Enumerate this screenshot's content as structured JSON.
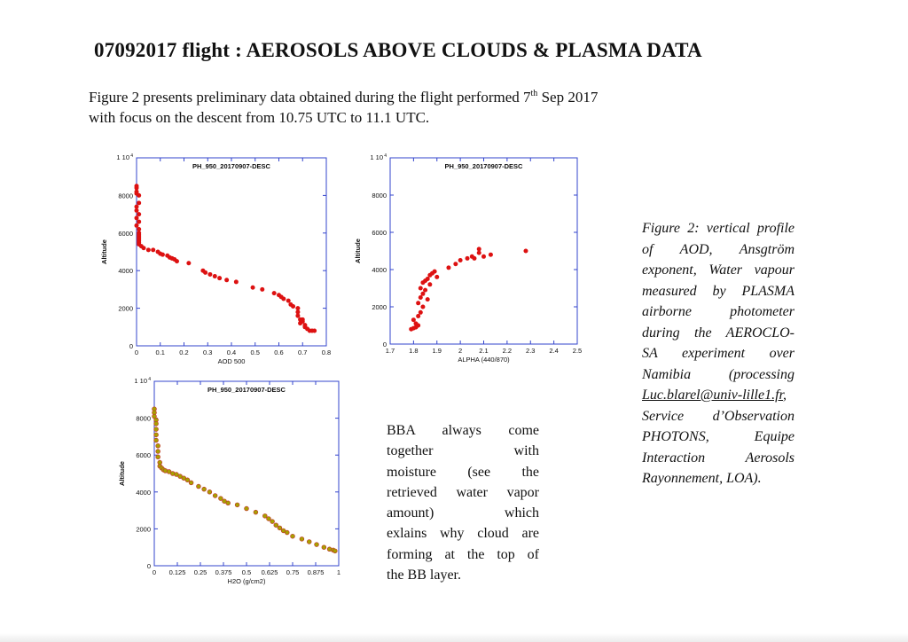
{
  "page": {
    "title": "07092017 flight : AEROSOLS ABOVE CLOUDS & PLASMA DATA",
    "intro_part1": "Figure 2 presents preliminary data obtained during the flight performed 7",
    "intro_sup": "th",
    "intro_part2": " Sep 2017",
    "intro_line2": "with focus on the descent from 10.75 UTC to 11.1 UTC."
  },
  "note": {
    "lines": [
      "BBA always come",
      "together with",
      "moisture (see the",
      "retrieved water vapor",
      "amount) which",
      "exlains why cloud are",
      "forming at the top of",
      "the BB layer."
    ]
  },
  "caption": {
    "lines_before": [
      "Figure 2: vertical profile",
      "of AOD, Ansgtröm",
      "exponent, Water vapour",
      "measured by PLASMA",
      "airborne photometer",
      "during the AEROCLO-",
      "SA experiment over",
      "Namibia (processing"
    ],
    "link": "Luc.blarel@univ-lille1.fr",
    "link_suffix": ",",
    "lines_after": [
      "Service d’Observation",
      "PHOTONS, Equipe",
      "Interaction Aerosols",
      "Rayonnement, LOA)."
    ]
  },
  "chart_data": [
    {
      "type": "scatter",
      "title": "PH_950_20170907-DESC",
      "xlabel": "AOD 500",
      "ylabel": "Altitude",
      "xlim": [
        0,
        0.8
      ],
      "ylim": [
        0,
        10000
      ],
      "xticks": [
        "0",
        "0.1",
        "0.2",
        "0.3",
        "0.4",
        "0.5",
        "0.6",
        "0.7",
        "0.8"
      ],
      "yticks": [
        "0",
        "2000",
        "4000",
        "6000",
        "8000"
      ],
      "ytop_label": "1 10",
      "ytop_exp": "4",
      "marker_color": "#dd1111",
      "x": [
        0.0,
        0.0,
        0.0,
        0.0,
        0.01,
        0.01,
        0.0,
        0.0,
        0.01,
        0.0,
        0.01,
        0.0,
        0.01,
        0.01,
        0.01,
        0.01,
        0.01,
        0.01,
        0.01,
        0.01,
        0.02,
        0.03,
        0.05,
        0.07,
        0.09,
        0.1,
        0.11,
        0.13,
        0.14,
        0.15,
        0.16,
        0.17,
        0.22,
        0.28,
        0.29,
        0.31,
        0.33,
        0.35,
        0.38,
        0.42,
        0.49,
        0.53,
        0.58,
        0.6,
        0.61,
        0.62,
        0.64,
        0.65,
        0.66,
        0.68,
        0.68,
        0.68,
        0.69,
        0.69,
        0.7,
        0.7,
        0.71,
        0.71,
        0.72,
        0.73,
        0.74,
        0.75
      ],
      "y": [
        8500,
        8400,
        8200,
        8100,
        8000,
        7600,
        7400,
        7200,
        7000,
        6800,
        6600,
        6400,
        6200,
        6000,
        5900,
        5800,
        5700,
        5600,
        5500,
        5400,
        5300,
        5200,
        5100,
        5100,
        5000,
        4900,
        4850,
        4800,
        4700,
        4650,
        4600,
        4500,
        4400,
        4000,
        3900,
        3800,
        3700,
        3600,
        3500,
        3400,
        3100,
        3000,
        2800,
        2700,
        2600,
        2500,
        2400,
        2200,
        2100,
        2000,
        1800,
        1600,
        1400,
        1200,
        1400,
        1300,
        1100,
        1000,
        900,
        800,
        800,
        800
      ]
    },
    {
      "type": "scatter",
      "title": "PH_950_20170907-DESC",
      "xlabel": "ALPHA (440/870)",
      "ylabel": "Altitude",
      "xlim": [
        1.7,
        2.5
      ],
      "ylim": [
        0,
        10000
      ],
      "xticks": [
        "1.7",
        "1.8",
        "1.9",
        "2",
        "2.1",
        "2.2",
        "2.3",
        "2.4",
        "2.5"
      ],
      "yticks": [
        "0",
        "2000",
        "4000",
        "6000",
        "8000"
      ],
      "ytop_label": "1 10",
      "ytop_exp": "4",
      "marker_color": "#dd1111",
      "x": [
        1.79,
        1.8,
        1.81,
        1.82,
        1.81,
        1.8,
        1.82,
        1.83,
        1.84,
        1.82,
        1.83,
        1.84,
        1.85,
        1.83,
        1.84,
        1.85,
        1.86,
        1.87,
        1.88,
        1.89,
        1.9,
        1.87,
        1.86,
        1.95,
        1.98,
        2.0,
        2.03,
        2.06,
        2.05,
        2.08,
        2.1,
        2.08,
        2.13,
        2.28
      ],
      "y": [
        800,
        850,
        900,
        1000,
        1100,
        1300,
        1500,
        1700,
        2000,
        2200,
        2500,
        2700,
        2900,
        3000,
        3300,
        3400,
        3500,
        3700,
        3800,
        3900,
        3600,
        3200,
        2400,
        4100,
        4300,
        4500,
        4600,
        4600,
        4700,
        4900,
        4700,
        5100,
        4800,
        5000
      ]
    },
    {
      "type": "scatter",
      "title": "PH_950_20170907-DESC",
      "xlabel": "H2O (g/cm2)",
      "ylabel": "Altitude",
      "xlim": [
        0,
        1
      ],
      "ylim": [
        0,
        10000
      ],
      "xticks": [
        "0",
        "0.125",
        "0.25",
        "0.375",
        "0.5",
        "0.625",
        "0.75",
        "0.875",
        "1"
      ],
      "yticks": [
        "0",
        "2000",
        "4000",
        "6000",
        "8000"
      ],
      "ytop_label": "1 10",
      "ytop_exp": "4",
      "marker_color": "#a8a000",
      "marker_edge": "#c0392b",
      "x": [
        0.0,
        0.0,
        0.0,
        0.01,
        0.01,
        0.01,
        0.01,
        0.01,
        0.02,
        0.02,
        0.02,
        0.03,
        0.03,
        0.04,
        0.05,
        0.06,
        0.08,
        0.1,
        0.12,
        0.14,
        0.16,
        0.18,
        0.2,
        0.24,
        0.27,
        0.3,
        0.33,
        0.36,
        0.38,
        0.4,
        0.45,
        0.5,
        0.55,
        0.6,
        0.62,
        0.64,
        0.66,
        0.68,
        0.7,
        0.72,
        0.75,
        0.8,
        0.84,
        0.88,
        0.92,
        0.95,
        0.97,
        0.98
      ],
      "y": [
        8500,
        8300,
        8100,
        7900,
        7700,
        7400,
        7100,
        6800,
        6500,
        6200,
        5900,
        5600,
        5400,
        5300,
        5200,
        5150,
        5100,
        5000,
        4950,
        4850,
        4750,
        4650,
        4500,
        4300,
        4150,
        4000,
        3800,
        3650,
        3500,
        3400,
        3300,
        3100,
        2900,
        2700,
        2550,
        2400,
        2200,
        2050,
        1900,
        1800,
        1600,
        1450,
        1300,
        1150,
        1000,
        900,
        850,
        800
      ]
    }
  ]
}
